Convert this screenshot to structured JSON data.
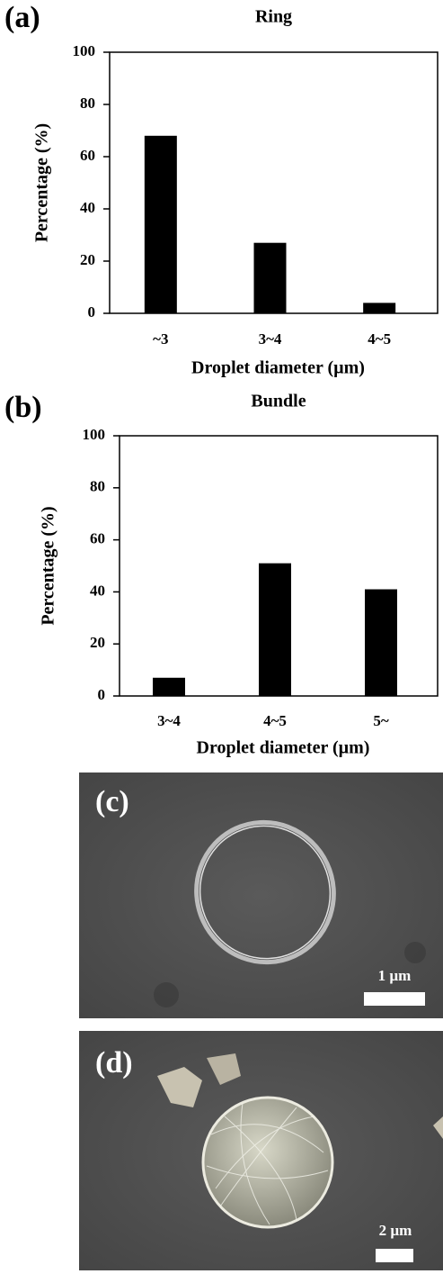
{
  "chart_data": [
    {
      "type": "bar",
      "panel_label": "(a)",
      "title": "Ring",
      "x_label": "Droplet diameter (µm)",
      "y_label": "Percentage (%)",
      "categories": [
        "~3",
        "3~4",
        "4~5"
      ],
      "values": [
        68,
        27,
        4
      ],
      "color": "#000000",
      "ylim": [
        0,
        100
      ],
      "yticks": [
        0,
        20,
        40,
        60,
        80,
        100
      ]
    },
    {
      "type": "bar",
      "panel_label": "(b)",
      "title": "Bundle",
      "x_label": "Droplet diameter (µm)",
      "y_label": "Percentage (%)",
      "categories": [
        "3~4",
        "4~5",
        "5~"
      ],
      "values": [
        7,
        51,
        41
      ],
      "color": "#000000",
      "ylim": [
        0,
        100
      ],
      "yticks": [
        0,
        20,
        40,
        60,
        80,
        100
      ]
    }
  ],
  "images": [
    {
      "label": "(c)",
      "scale_bar": "1 µm"
    },
    {
      "label": "(d)",
      "scale_bar": "2 µm"
    }
  ]
}
